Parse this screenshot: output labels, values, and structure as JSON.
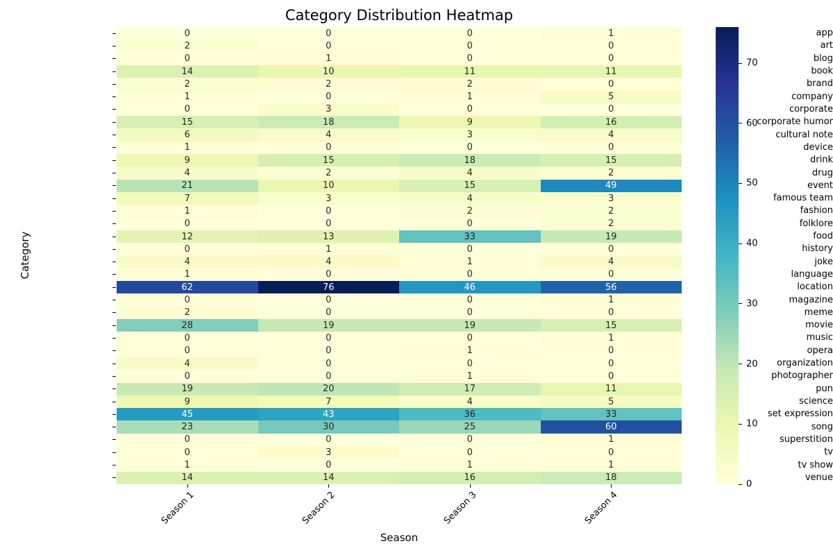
{
  "title": "Category Distribution Heatmap",
  "chart_data": {
    "type": "heatmap",
    "title": "Category Distribution Heatmap",
    "xlabel": "Season",
    "ylabel": "Category",
    "x_categories": [
      "Season 1",
      "Season 2",
      "Season 3",
      "Season 4"
    ],
    "y_categories": [
      "app",
      "art",
      "blog",
      "book",
      "brand",
      "company",
      "corporate",
      "corporate humor",
      "cultural note",
      "device",
      "drink",
      "drug",
      "event",
      "famous team",
      "fashion",
      "folklore",
      "food",
      "history",
      "joke",
      "language",
      "location",
      "magazine",
      "meme",
      "movie",
      "music",
      "opera",
      "organization",
      "photographer",
      "pun",
      "science",
      "set expression",
      "song",
      "superstition",
      "tv",
      "tv show",
      "venue"
    ],
    "values": [
      [
        0,
        0,
        0,
        1
      ],
      [
        2,
        0,
        0,
        0
      ],
      [
        0,
        1,
        0,
        0
      ],
      [
        14,
        10,
        11,
        11
      ],
      [
        2,
        2,
        2,
        0
      ],
      [
        1,
        0,
        1,
        5
      ],
      [
        0,
        3,
        0,
        0
      ],
      [
        15,
        18,
        9,
        16
      ],
      [
        6,
        4,
        3,
        4
      ],
      [
        1,
        0,
        0,
        0
      ],
      [
        9,
        15,
        18,
        15
      ],
      [
        4,
        2,
        4,
        2
      ],
      [
        21,
        10,
        15,
        49
      ],
      [
        7,
        3,
        4,
        3
      ],
      [
        1,
        0,
        2,
        2
      ],
      [
        0,
        0,
        0,
        2
      ],
      [
        12,
        13,
        33,
        19
      ],
      [
        0,
        1,
        0,
        0
      ],
      [
        4,
        4,
        1,
        4
      ],
      [
        1,
        0,
        0,
        0
      ],
      [
        62,
        76,
        46,
        56
      ],
      [
        0,
        0,
        0,
        1
      ],
      [
        2,
        0,
        0,
        0
      ],
      [
        28,
        19,
        19,
        15
      ],
      [
        0,
        0,
        0,
        1
      ],
      [
        0,
        0,
        1,
        0
      ],
      [
        4,
        0,
        0,
        0
      ],
      [
        0,
        0,
        1,
        0
      ],
      [
        19,
        20,
        17,
        11
      ],
      [
        9,
        7,
        4,
        5
      ],
      [
        45,
        43,
        36,
        33
      ],
      [
        23,
        30,
        25,
        60
      ],
      [
        0,
        0,
        0,
        1
      ],
      [
        0,
        3,
        0,
        0
      ],
      [
        1,
        0,
        1,
        1
      ],
      [
        14,
        14,
        16,
        18
      ]
    ],
    "vmin": 0,
    "vmax": 76,
    "annotated": true,
    "colormap_name": "YlGnBu",
    "colormap_stops": [
      "#ffffd9",
      "#edf8b1",
      "#c7e9b4",
      "#7fcdbb",
      "#41b6c4",
      "#1d91c0",
      "#225ea8",
      "#253494",
      "#081d58"
    ],
    "colorbar_ticks": [
      0,
      10,
      20,
      30,
      40,
      50,
      60,
      70
    ],
    "colorbar_position": "right",
    "annotation_color_dark": "#262626",
    "annotation_color_light": "#ffffff",
    "grid": false
  }
}
